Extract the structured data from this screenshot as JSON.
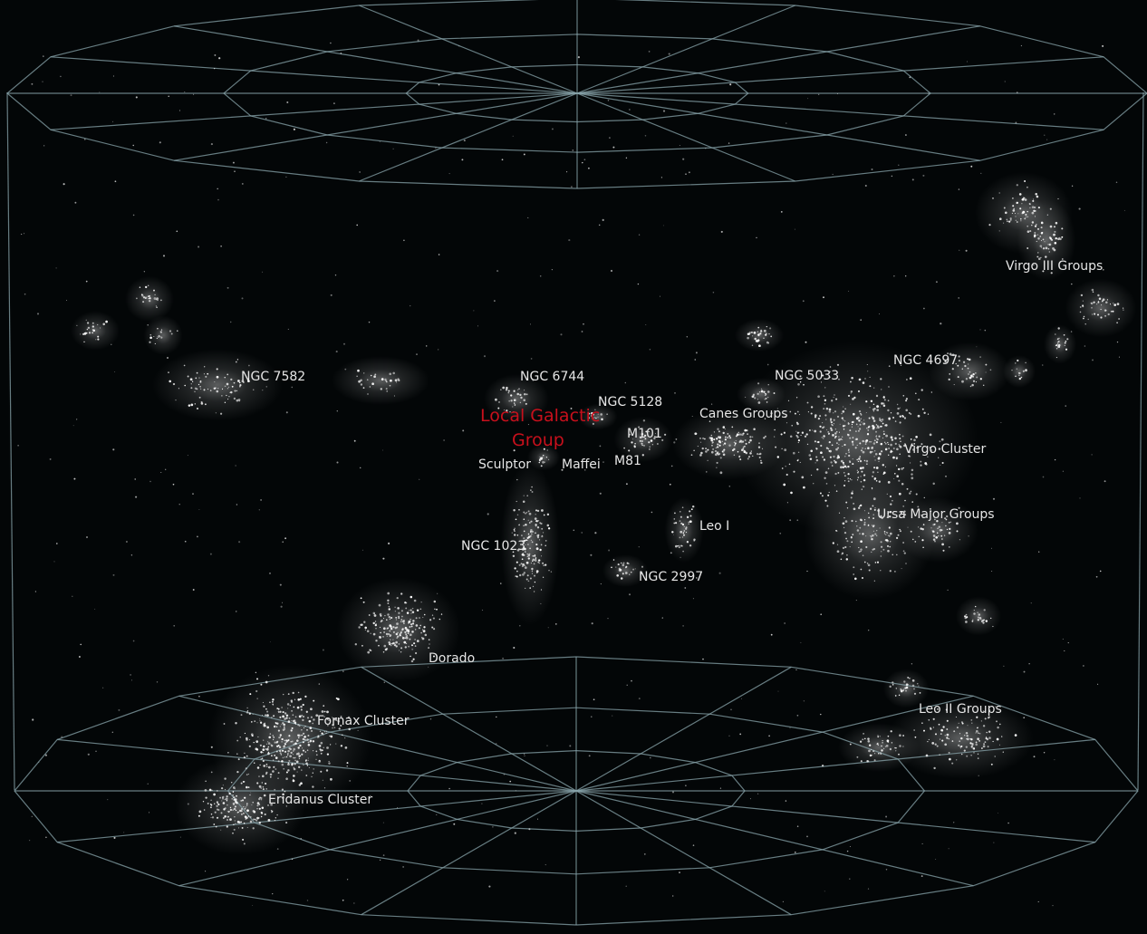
{
  "title": "",
  "labels": {
    "ngc7582": "NGC 7582",
    "ngc6744": "NGC 6744",
    "ngc5128": "NGC 5128",
    "local_group_line1": "Local Galactic",
    "local_group_line2": "Group",
    "m101": "M101",
    "m81": "M81",
    "sculptor": "Sculptor",
    "maffei": "Maffei",
    "canes_groups": "Canes Groups",
    "ngc5033": "NGC 5033",
    "ngc4697": "NGC 4697",
    "virgo_iii_groups": "Virgo III Groups",
    "virgo_cluster": "Virgo Cluster",
    "ursa_major_groups": "Ursa Major Groups",
    "leo_i": "Leo I",
    "ngc1023": "NGC 1023",
    "ngc2997": "NGC 2997",
    "dorado": "Dorado",
    "fornax_cluster": "Fornax Cluster",
    "eridanus_cluster": "Eridanus Cluster",
    "leo_ii_groups": "Leo II Groups"
  },
  "colors": {
    "background": "#030607",
    "grid": "#8aa6ac",
    "label": "#e6e6e6",
    "local_group_label": "#c8101c",
    "galaxy": "#ffffff"
  }
}
